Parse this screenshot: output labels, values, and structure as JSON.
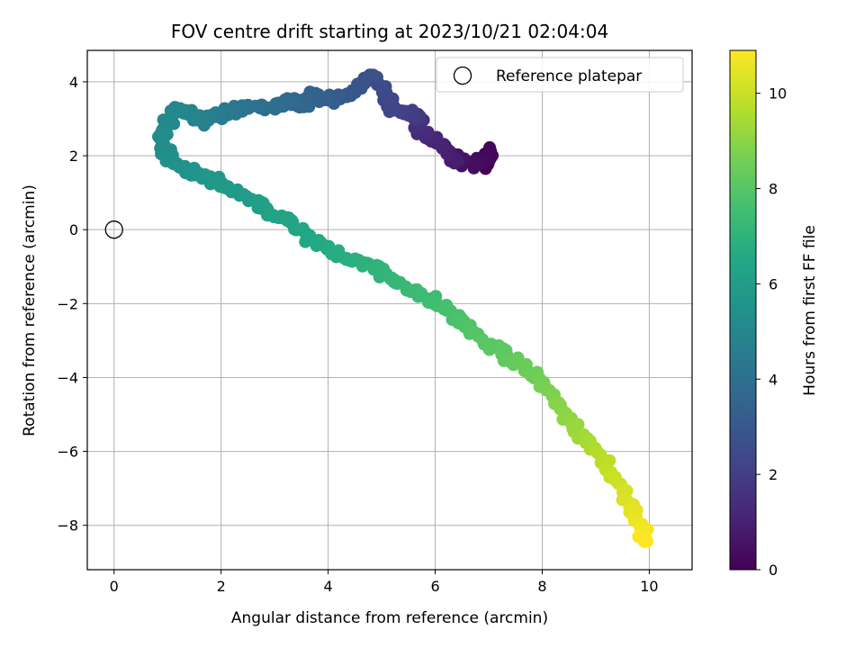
{
  "chart_data": {
    "type": "scatter",
    "title": "FOV centre drift starting at 2023/10/21 02:04:04",
    "xlabel": "Angular distance from reference (arcmin)",
    "ylabel": "Rotation from reference (arcmin)",
    "xlim": [
      -0.5,
      10.8
    ],
    "ylim": [
      -9.2,
      4.85
    ],
    "xticks": [
      0,
      2,
      4,
      6,
      8,
      10
    ],
    "yticks": [
      -8,
      -6,
      -4,
      -2,
      0,
      2,
      4
    ],
    "xtick_labels": [
      "0",
      "2",
      "4",
      "6",
      "8",
      "10"
    ],
    "ytick_labels": [
      "−8",
      "−6",
      "−4",
      "−2",
      "0",
      "2",
      "4"
    ],
    "grid": true,
    "colormap": "viridis",
    "colorbar": {
      "label": "Hours from first FF file",
      "range": [
        0,
        10.9
      ],
      "ticks": [
        0,
        2,
        4,
        6,
        8,
        10
      ],
      "tick_labels": [
        "0",
        "2",
        "4",
        "6",
        "8",
        "10"
      ]
    },
    "legend": {
      "position": "top-right",
      "entries": [
        "Reference platepar"
      ]
    },
    "reference_point": {
      "x": 0,
      "y": 0
    },
    "path": [
      {
        "x": 6.9,
        "y": 1.8,
        "hours": 0.0
      },
      {
        "x": 7.05,
        "y": 2.15,
        "hours": 0.15
      },
      {
        "x": 6.7,
        "y": 1.75,
        "hours": 0.35
      },
      {
        "x": 6.3,
        "y": 2.05,
        "hours": 0.6
      },
      {
        "x": 6.4,
        "y": 1.85,
        "hours": 0.85
      },
      {
        "x": 6.0,
        "y": 2.45,
        "hours": 1.1
      },
      {
        "x": 5.75,
        "y": 2.6,
        "hours": 1.35
      },
      {
        "x": 5.7,
        "y": 3.05,
        "hours": 1.6
      },
      {
        "x": 5.6,
        "y": 3.0,
        "hours": 1.8
      },
      {
        "x": 5.5,
        "y": 3.2,
        "hours": 2.0
      },
      {
        "x": 5.15,
        "y": 3.3,
        "hours": 2.2
      },
      {
        "x": 5.05,
        "y": 3.75,
        "hours": 2.4
      },
      {
        "x": 4.85,
        "y": 4.2,
        "hours": 2.6
      },
      {
        "x": 4.65,
        "y": 3.9,
        "hours": 2.8
      },
      {
        "x": 4.3,
        "y": 3.55,
        "hours": 3.0
      },
      {
        "x": 3.95,
        "y": 3.5,
        "hours": 3.2
      },
      {
        "x": 3.7,
        "y": 3.65,
        "hours": 3.4
      },
      {
        "x": 3.5,
        "y": 3.3,
        "hours": 3.6
      },
      {
        "x": 3.3,
        "y": 3.55,
        "hours": 3.75
      },
      {
        "x": 3.05,
        "y": 3.35,
        "hours": 3.9
      },
      {
        "x": 2.45,
        "y": 3.35,
        "hours": 4.1
      },
      {
        "x": 2.2,
        "y": 3.25,
        "hours": 4.3
      },
      {
        "x": 2.0,
        "y": 3.1,
        "hours": 4.45
      },
      {
        "x": 1.8,
        "y": 3.05,
        "hours": 4.6
      },
      {
        "x": 1.65,
        "y": 2.9,
        "hours": 4.75
      },
      {
        "x": 1.4,
        "y": 3.1,
        "hours": 4.9
      },
      {
        "x": 1.2,
        "y": 3.3,
        "hours": 5.0
      },
      {
        "x": 1.0,
        "y": 2.85,
        "hours": 5.1
      },
      {
        "x": 0.9,
        "y": 2.5,
        "hours": 5.2
      },
      {
        "x": 0.95,
        "y": 2.1,
        "hours": 5.3
      },
      {
        "x": 1.1,
        "y": 1.75,
        "hours": 5.45
      },
      {
        "x": 1.5,
        "y": 1.55,
        "hours": 5.6
      },
      {
        "x": 1.9,
        "y": 1.3,
        "hours": 5.75
      },
      {
        "x": 2.3,
        "y": 1.0,
        "hours": 5.9
      },
      {
        "x": 2.7,
        "y": 0.75,
        "hours": 6.05
      },
      {
        "x": 2.9,
        "y": 0.45,
        "hours": 6.2
      },
      {
        "x": 3.3,
        "y": 0.2,
        "hours": 6.35
      },
      {
        "x": 3.7,
        "y": -0.25,
        "hours": 6.5
      },
      {
        "x": 4.1,
        "y": -0.65,
        "hours": 6.7
      },
      {
        "x": 4.6,
        "y": -0.9,
        "hours": 6.9
      },
      {
        "x": 5.1,
        "y": -1.2,
        "hours": 7.1
      },
      {
        "x": 5.5,
        "y": -1.6,
        "hours": 7.3
      },
      {
        "x": 5.9,
        "y": -1.9,
        "hours": 7.5
      },
      {
        "x": 6.3,
        "y": -2.3,
        "hours": 7.7
      },
      {
        "x": 6.7,
        "y": -2.75,
        "hours": 7.9
      },
      {
        "x": 7.1,
        "y": -3.2,
        "hours": 8.1
      },
      {
        "x": 7.5,
        "y": -3.6,
        "hours": 8.3
      },
      {
        "x": 7.9,
        "y": -4.0,
        "hours": 8.5
      },
      {
        "x": 8.25,
        "y": -4.6,
        "hours": 8.8
      },
      {
        "x": 8.5,
        "y": -5.2,
        "hours": 9.1
      },
      {
        "x": 8.8,
        "y": -5.7,
        "hours": 9.4
      },
      {
        "x": 9.1,
        "y": -6.2,
        "hours": 9.7
      },
      {
        "x": 9.4,
        "y": -6.9,
        "hours": 10.1
      },
      {
        "x": 9.7,
        "y": -7.5,
        "hours": 10.4
      },
      {
        "x": 9.85,
        "y": -8.1,
        "hours": 10.7
      },
      {
        "x": 9.95,
        "y": -8.4,
        "hours": 10.9
      }
    ]
  }
}
